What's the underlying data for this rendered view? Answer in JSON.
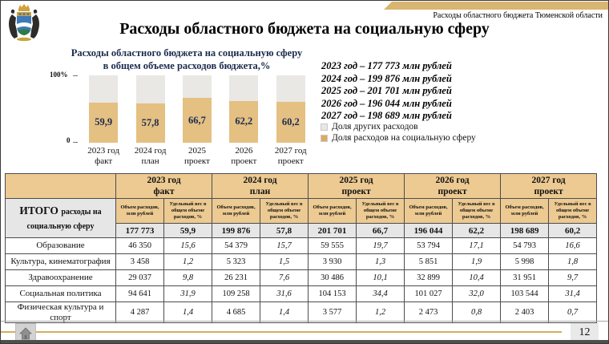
{
  "slide": {
    "corner_tag": "Расходы областного бюджета Тюменской области",
    "title": "Расходы областного бюджета на социальную сферу",
    "page_number": "12"
  },
  "colors": {
    "social_share": "#e5c083",
    "other_share": "#e9e8e5",
    "legend_social": "#dfa95e",
    "legend_other": "#e9e8e5",
    "table_header": "#ecca92",
    "accent_line": "#d3ae62",
    "chart_title_text": "#1b2b4d"
  },
  "chart_data": {
    "type": "bar",
    "stacked_percent": true,
    "title": "Расходы областного бюджета на социальную сферу в общем объеме расходов бюджета,%",
    "title_lines": [
      "Расходы областного бюджета на социальную сферу",
      "в общем объеме расходов бюджета,%"
    ],
    "categories": [
      "2023 год факт",
      "2024 год план",
      "2025 проект",
      "2026 проект",
      "2027 год проект"
    ],
    "series": [
      {
        "name": "Доля расходов на социальную сферу",
        "color": "#e5c083",
        "values": [
          59.9,
          57.8,
          66.7,
          62.2,
          60.2
        ]
      },
      {
        "name": "Доля других расходов",
        "color": "#e9e8e5",
        "values": [
          40.1,
          42.2,
          33.3,
          37.8,
          39.8
        ]
      }
    ],
    "bar_labels": [
      "59,9",
      "57,8",
      "66,7",
      "62,2",
      "60,2"
    ],
    "ylim": [
      0,
      100
    ],
    "y_ticks": [
      "100%",
      "0"
    ],
    "legend_position": "right"
  },
  "annotations": {
    "amounts": [
      "2023 год – 177 773 млн рублей",
      "2024 год – 199 876 млн рублей",
      "2025 год – 201 701 млн рублей",
      "2026 год – 196 044 млн рублей",
      "2027 год – 198 689 млн рублей"
    ],
    "legend": [
      {
        "label": "Доля других расходов",
        "color": "#e9e8e5"
      },
      {
        "label": "Доля расходов на социальную сферу",
        "color": "#dfa95e"
      }
    ]
  },
  "table": {
    "row_header_big": "ИТОГО",
    "row_header_small": "расходы на социальную сферу",
    "year_groups": [
      {
        "line1": "2023 год",
        "line2": "факт"
      },
      {
        "line1": "2024 год",
        "line2": "план"
      },
      {
        "line1": "2025 год",
        "line2": "проект"
      },
      {
        "line1": "2026 год",
        "line2": "проект"
      },
      {
        "line1": "2027 год",
        "line2": "проект"
      }
    ],
    "sub_headers": [
      "Объем расходов, млн рублей",
      "Удельный вес в общем объеме расходов, %"
    ],
    "total_row": [
      "177 773",
      "59,9",
      "199 876",
      "57,8",
      "201 701",
      "66,7",
      "196 044",
      "62,2",
      "198 689",
      "60,2"
    ],
    "rows": [
      {
        "label": "Образование",
        "values": [
          "46 350",
          "15,6",
          "54 379",
          "15,7",
          "59 555",
          "19,7",
          "53 794",
          "17,1",
          "54 793",
          "16,6"
        ]
      },
      {
        "label": "Культура, кинематография",
        "values": [
          "3 458",
          "1,2",
          "5 323",
          "1,5",
          "3 930",
          "1,3",
          "5 851",
          "1,9",
          "5 998",
          "1,8"
        ]
      },
      {
        "label": "Здравоохранение",
        "values": [
          "29 037",
          "9,8",
          "26 231",
          "7,6",
          "30 486",
          "10,1",
          "32 899",
          "10,4",
          "31 951",
          "9,7"
        ]
      },
      {
        "label": "Социальная политика",
        "values": [
          "94 641",
          "31,9",
          "109 258",
          "31,6",
          "104 153",
          "34,4",
          "101 027",
          "32,0",
          "103 544",
          "31,4"
        ]
      },
      {
        "label": "Физическая культура и спорт",
        "values": [
          "4 287",
          "1,4",
          "4 685",
          "1,4",
          "3 577",
          "1,2",
          "2 473",
          "0,8",
          "2 403",
          "0,7"
        ]
      }
    ]
  }
}
